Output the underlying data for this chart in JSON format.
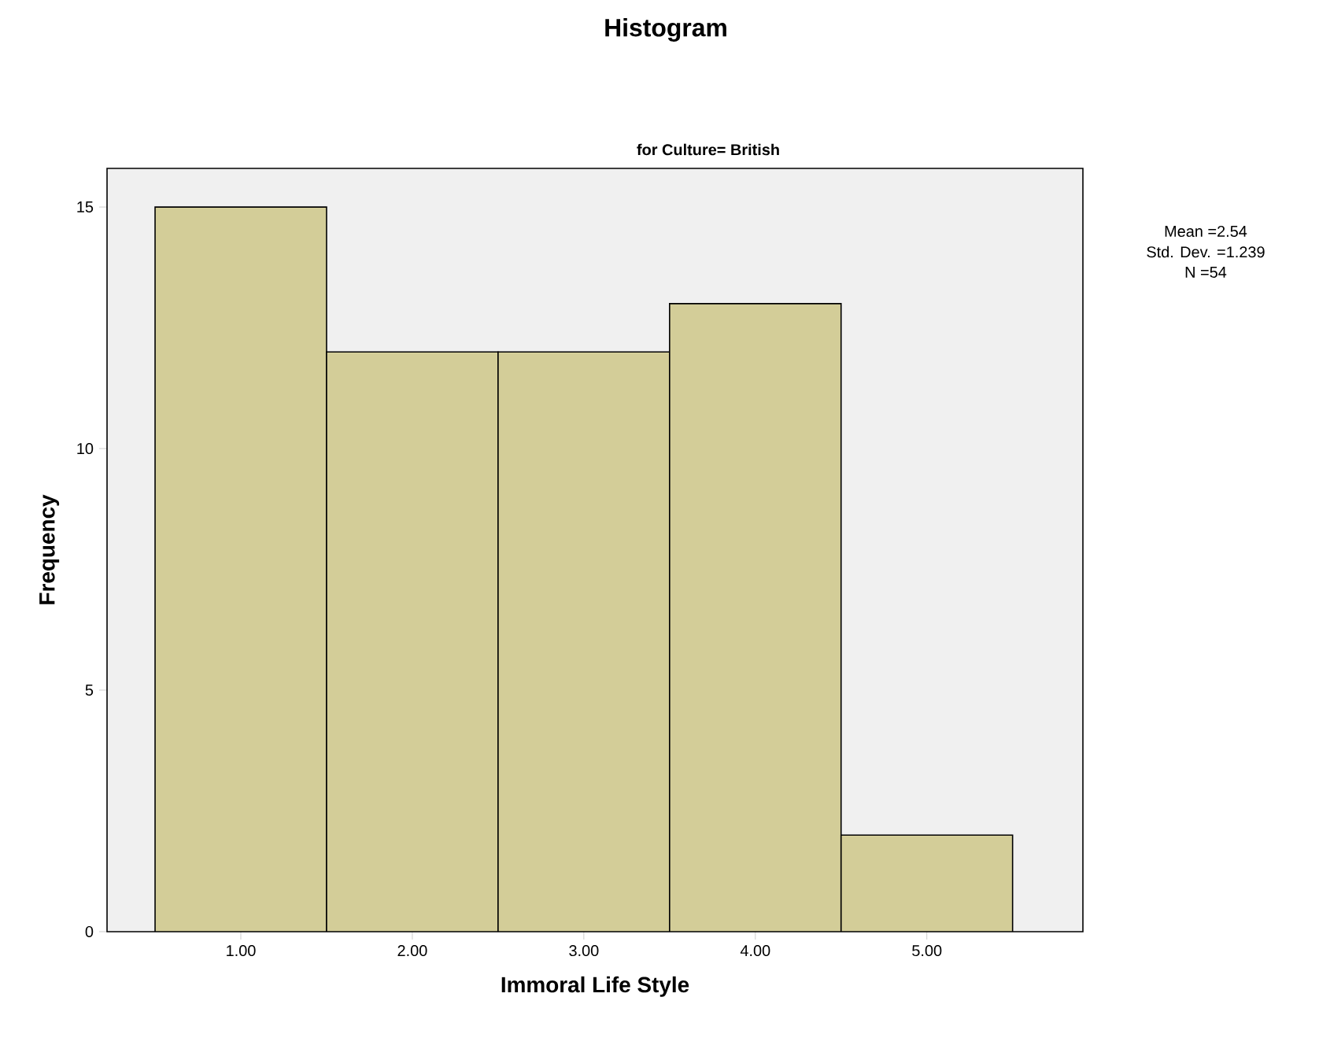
{
  "chart_data": {
    "type": "histogram",
    "title": "Histogram",
    "subtitle": "for Culture= British",
    "xlabel": "Immoral Life Style",
    "ylabel": "Frequency",
    "bins": [
      0.5,
      1.5,
      2.5,
      3.5,
      4.5,
      5.5
    ],
    "values": [
      15,
      12,
      12,
      13,
      2
    ],
    "color": "#d3cd98",
    "xlim": [
      0.22,
      5.91
    ],
    "ylim": [
      0,
      15.8
    ],
    "xticks": [
      {
        "value": 1,
        "label": "1.00"
      },
      {
        "value": 2,
        "label": "2.00"
      },
      {
        "value": 3,
        "label": "3.00"
      },
      {
        "value": 4,
        "label": "4.00"
      },
      {
        "value": 5,
        "label": "5.00"
      }
    ],
    "yticks": [
      0,
      5,
      10,
      15
    ],
    "annotations": [
      "Mean =2.54",
      "Std. Dev. =1.239",
      "N =54"
    ],
    "grid": false
  }
}
